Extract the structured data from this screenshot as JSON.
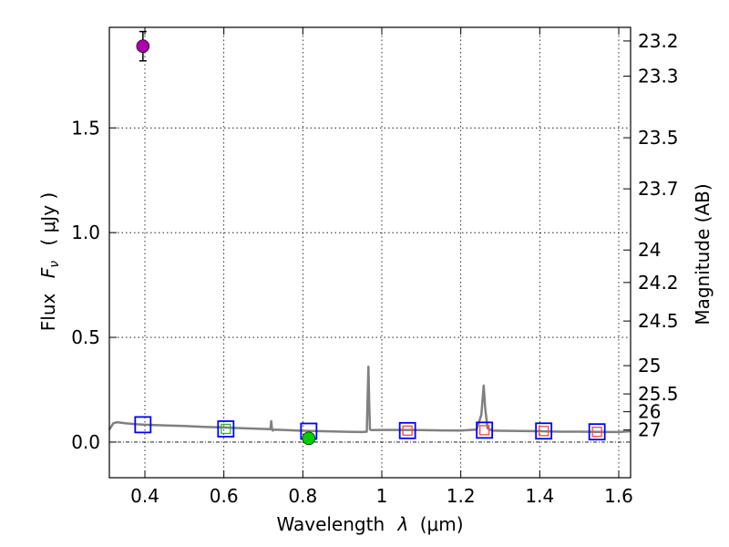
{
  "chart_data": {
    "type": "scatter",
    "xlabel": "Wavelength",
    "xlabel_symbol": "λ",
    "xlabel_unit": "(μm)",
    "ylabel": "Flux",
    "ylabel_symbol": "F",
    "ylabel_subscript": "ν",
    "ylabel_unit": "( μJy )",
    "y2label": "Magnitude (AB)",
    "xlim": [
      0.31,
      1.63
    ],
    "ylim": [
      -0.17,
      1.98
    ],
    "grid": true,
    "x_ticks": [
      0.4,
      0.6,
      0.8,
      1.0,
      1.2,
      1.4,
      1.6
    ],
    "x_tick_labels": [
      "0.4",
      "0.6",
      "0.8",
      "1",
      "1.2",
      "1.4",
      "1.6"
    ],
    "y_ticks": [
      0.0,
      0.5,
      1.0,
      1.5
    ],
    "y_tick_labels": [
      "0.0",
      "0.5",
      "1.0",
      "1.5"
    ],
    "magnitude_ticks": [
      {
        "label": "23.2",
        "flux": 1.915
      },
      {
        "label": "23.3",
        "flux": 1.747
      },
      {
        "label": "23.5",
        "flux": 1.453
      },
      {
        "label": "23.7",
        "flux": 1.209
      },
      {
        "label": "24",
        "flux": 0.917
      },
      {
        "label": "24.2",
        "flux": 0.762
      },
      {
        "label": "24.5",
        "flux": 0.578
      },
      {
        "label": "25",
        "flux": 0.365
      },
      {
        "label": "25.5",
        "flux": 0.23
      },
      {
        "label": "26",
        "flux": 0.145
      },
      {
        "label": "27",
        "flux": 0.058
      }
    ],
    "model_spectrum": {
      "color": "#808080",
      "x": [
        0.31,
        0.315,
        0.32,
        0.33,
        0.35,
        0.38,
        0.4,
        0.45,
        0.5,
        0.55,
        0.6,
        0.65,
        0.7,
        0.718,
        0.72,
        0.722,
        0.724,
        0.727,
        0.75,
        0.8,
        0.85,
        0.9,
        0.95,
        0.962,
        0.966,
        0.968,
        0.97,
        0.974,
        1.0,
        1.05,
        1.1,
        1.15,
        1.2,
        1.24,
        1.252,
        1.258,
        1.262,
        1.268,
        1.28,
        1.3,
        1.35,
        1.4,
        1.45,
        1.5,
        1.55,
        1.6,
        1.63
      ],
      "y": [
        0.06,
        0.075,
        0.09,
        0.095,
        0.09,
        0.085,
        0.083,
        0.08,
        0.077,
        0.073,
        0.07,
        0.066,
        0.063,
        0.062,
        0.1,
        0.062,
        0.055,
        0.06,
        0.058,
        0.054,
        0.052,
        0.05,
        0.048,
        0.05,
        0.36,
        0.2,
        0.06,
        0.057,
        0.058,
        0.058,
        0.057,
        0.056,
        0.055,
        0.06,
        0.13,
        0.27,
        0.16,
        0.065,
        0.055,
        0.054,
        0.053,
        0.052,
        0.05,
        0.05,
        0.049,
        0.048,
        0.052
      ]
    },
    "series": [
      {
        "name": "model_bands_blue",
        "marker": "open-square",
        "color": "#0000ff",
        "points": [
          {
            "x": 0.395,
            "y": 0.083
          },
          {
            "x": 0.605,
            "y": 0.063
          },
          {
            "x": 0.815,
            "y": 0.052
          },
          {
            "x": 1.065,
            "y": 0.055
          },
          {
            "x": 1.26,
            "y": 0.057
          },
          {
            "x": 1.41,
            "y": 0.053
          },
          {
            "x": 1.545,
            "y": 0.049
          }
        ]
      },
      {
        "name": "observed_green",
        "marker": "open-square",
        "color": "#22bb22",
        "points": [
          {
            "x": 0.605,
            "y": 0.063
          }
        ]
      },
      {
        "name": "observed_red",
        "marker": "open-square",
        "color": "#ff4444",
        "points": [
          {
            "x": 1.065,
            "y": 0.055
          },
          {
            "x": 1.26,
            "y": 0.057
          },
          {
            "x": 1.41,
            "y": 0.053
          },
          {
            "x": 1.545,
            "y": 0.049
          }
        ]
      },
      {
        "name": "detection_magenta",
        "marker": "circle",
        "color": "#aa00aa",
        "points": [
          {
            "x": 0.395,
            "y": 1.89,
            "yerr": 0.07
          }
        ]
      },
      {
        "name": "detection_green",
        "marker": "circle",
        "color": "#00cc00",
        "points": [
          {
            "x": 0.815,
            "y": 0.018,
            "yerr": 0.012
          }
        ]
      }
    ]
  }
}
